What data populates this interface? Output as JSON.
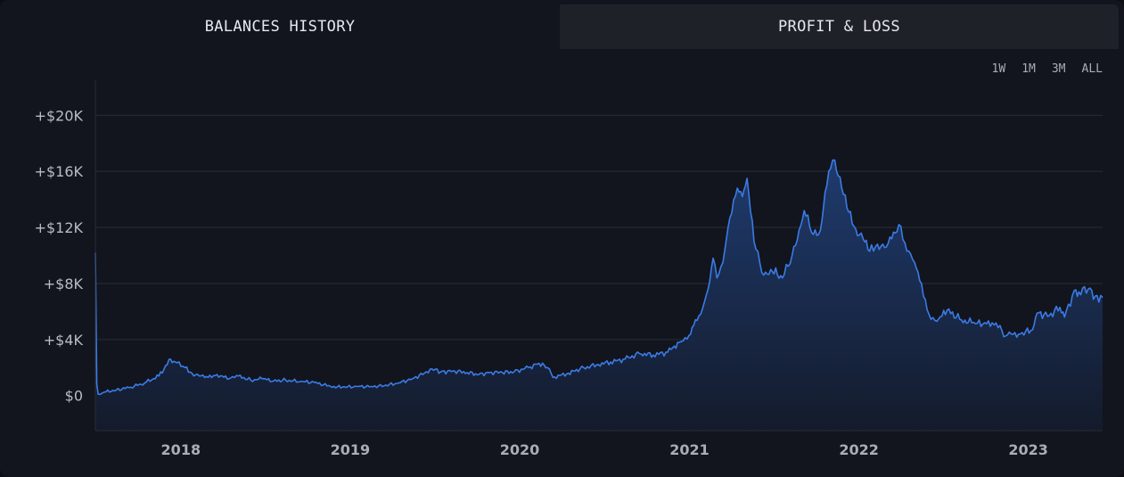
{
  "tabs": [
    {
      "label": "BALANCES HISTORY",
      "active": true
    },
    {
      "label": "PROFIT & LOSS",
      "active": false
    }
  ],
  "ranges": [
    "1W",
    "1M",
    "3M",
    "ALL"
  ],
  "colors": {
    "line": "#3b7be6",
    "fill_top": "#1f3d72",
    "fill_bottom": "#141b2c",
    "grid": "#2a2d36"
  },
  "chart_data": {
    "type": "area",
    "title": "",
    "xlabel": "",
    "ylabel": "",
    "y_tick_labels": [
      "$0",
      "+$4K",
      "+$8K",
      "+$12K",
      "+$16K",
      "+$20K"
    ],
    "y_tick_values": [
      0,
      4000,
      8000,
      12000,
      16000,
      20000
    ],
    "x_tick_labels": [
      "2018",
      "2019",
      "2020",
      "2021",
      "2022",
      "2023"
    ],
    "x_tick_values": [
      "2018-01-01",
      "2019-01-01",
      "2020-01-01",
      "2021-01-01",
      "2022-01-01",
      "2023-01-01"
    ],
    "xlim": [
      "2017-07-01",
      "2023-06-10"
    ],
    "ylim": [
      -2500,
      22500
    ],
    "grid": true,
    "series": [
      {
        "x": [
          "2017-07-01",
          "2017-07-04",
          "2017-07-07",
          "2017-07-20",
          "2017-08-15",
          "2017-09-15",
          "2017-10-15",
          "2017-11-15",
          "2017-12-10",
          "2017-12-20",
          "2018-01-10",
          "2018-01-25",
          "2018-02-10",
          "2018-03-01",
          "2018-03-20",
          "2018-04-15",
          "2018-05-05",
          "2018-06-01",
          "2018-06-25",
          "2018-07-20",
          "2018-08-15",
          "2018-09-15",
          "2018-10-15",
          "2018-11-20",
          "2018-12-15",
          "2019-01-15",
          "2019-02-15",
          "2019-03-15",
          "2019-04-15",
          "2019-05-15",
          "2019-06-10",
          "2019-06-26",
          "2019-07-15",
          "2019-08-10",
          "2019-09-10",
          "2019-10-05",
          "2019-10-28",
          "2019-11-25",
          "2019-12-20",
          "2020-01-20",
          "2020-02-12",
          "2020-03-01",
          "2020-03-13",
          "2020-04-15",
          "2020-05-10",
          "2020-06-15",
          "2020-07-15",
          "2020-08-15",
          "2020-09-15",
          "2020-10-15",
          "2020-11-15",
          "2020-12-10",
          "2020-12-31",
          "2021-01-10",
          "2021-01-25",
          "2021-02-10",
          "2021-02-21",
          "2021-03-01",
          "2021-03-14",
          "2021-03-25",
          "2021-04-14",
          "2021-04-25",
          "2021-05-05",
          "2021-05-20",
          "2021-06-10",
          "2021-06-25",
          "2021-07-20",
          "2021-08-10",
          "2021-08-25",
          "2021-09-05",
          "2021-09-25",
          "2021-10-10",
          "2021-10-20",
          "2021-11-01",
          "2021-11-10",
          "2021-11-25",
          "2021-12-10",
          "2021-12-25",
          "2022-01-10",
          "2022-01-24",
          "2022-02-10",
          "2022-03-01",
          "2022-03-28",
          "2022-04-10",
          "2022-05-01",
          "2022-05-12",
          "2022-06-01",
          "2022-06-18",
          "2022-07-10",
          "2022-08-10",
          "2022-09-01",
          "2022-09-25",
          "2022-10-15",
          "2022-11-01",
          "2022-11-09",
          "2022-11-25",
          "2022-12-15",
          "2023-01-10",
          "2023-01-20",
          "2023-02-15",
          "2023-03-10",
          "2023-03-20",
          "2023-04-10",
          "2023-04-20",
          "2023-05-10",
          "2023-05-25",
          "2023-06-10"
        ],
        "y": [
          10200,
          800,
          100,
          250,
          400,
          600,
          900,
          1400,
          2600,
          2400,
          2000,
          1600,
          1400,
          1300,
          1500,
          1200,
          1400,
          1100,
          1200,
          1050,
          1100,
          1000,
          950,
          650,
          600,
          650,
          650,
          700,
          900,
          1200,
          1600,
          1900,
          1700,
          1750,
          1650,
          1500,
          1650,
          1650,
          1700,
          2000,
          2300,
          2000,
          1300,
          1600,
          1900,
          2200,
          2400,
          2600,
          3000,
          2900,
          3100,
          3800,
          4300,
          5000,
          5800,
          7600,
          9800,
          8400,
          9500,
          12000,
          14800,
          14200,
          15500,
          11000,
          8600,
          9000,
          8400,
          10000,
          11800,
          13200,
          11500,
          11800,
          14500,
          16200,
          16800,
          14800,
          13100,
          11900,
          11200,
          10300,
          10800,
          10600,
          12200,
          10900,
          9500,
          8200,
          5800,
          5300,
          6100,
          5400,
          5200,
          5100,
          5200,
          5000,
          4200,
          4400,
          4400,
          4700,
          5900,
          5700,
          6300,
          5600,
          7500,
          7400,
          7600,
          7100,
          7000
        ]
      }
    ]
  }
}
